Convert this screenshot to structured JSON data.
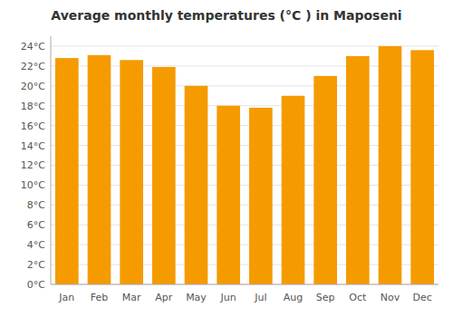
{
  "chart_data": {
    "type": "bar",
    "title": "Average monthly temperatures (°C ) in Maposeni",
    "categories": [
      "Jan",
      "Feb",
      "Mar",
      "Apr",
      "May",
      "Jun",
      "Jul",
      "Aug",
      "Sep",
      "Oct",
      "Nov",
      "Dec"
    ],
    "values": [
      22.8,
      23.1,
      22.6,
      21.9,
      20.0,
      18.0,
      17.8,
      19.0,
      21.0,
      23.0,
      24.0,
      23.6
    ],
    "color": "#F59B00",
    "ylim": [
      0,
      25
    ],
    "yticks": [
      {
        "value": 0,
        "label": "0°C"
      },
      {
        "value": 2,
        "label": "2°C"
      },
      {
        "value": 4,
        "label": "4°C"
      },
      {
        "value": 6,
        "label": "6°C"
      },
      {
        "value": 8,
        "label": "8°C"
      },
      {
        "value": 10,
        "label": "10°C"
      },
      {
        "value": 12,
        "label": "12°C"
      },
      {
        "value": 14,
        "label": "14°C"
      },
      {
        "value": 16,
        "label": "16°C"
      },
      {
        "value": 18,
        "label": "18°C"
      },
      {
        "value": 20,
        "label": "20°C"
      },
      {
        "value": 22,
        "label": "22°C"
      },
      {
        "value": 24,
        "label": "24°C"
      }
    ],
    "grid": true
  }
}
